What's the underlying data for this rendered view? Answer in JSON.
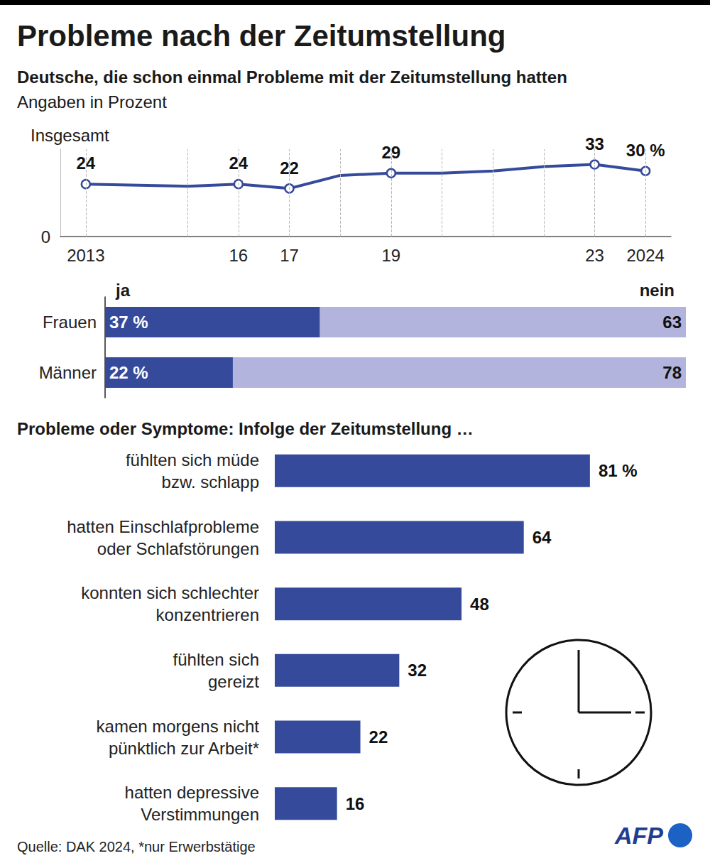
{
  "title": "Probleme nach der Zeitumstellung",
  "subtitle": "Deutsche, die schon einmal Probleme mit der Zeitumstellung hatten",
  "unit_note": "Angaben in Prozent",
  "source": "Quelle: DAK 2024, *nur Erwerbstätige",
  "logo": "AFP",
  "chart_data": [
    {
      "type": "line",
      "title": "Insgesamt",
      "x": [
        2013,
        2015,
        2016,
        2017,
        2018,
        2019,
        2020,
        2021,
        2022,
        2023,
        2024
      ],
      "values": [
        24,
        23,
        24,
        22,
        28,
        29,
        29,
        30,
        32,
        33,
        30
      ],
      "value_labels": [
        "24",
        null,
        "24",
        "22",
        null,
        "29",
        null,
        null,
        null,
        "33",
        "30 %"
      ],
      "color": "#354a9b",
      "marker": "circle",
      "xlim": [
        2012.5,
        2024.5
      ],
      "xticks": [
        2013,
        {
          "value": 2016,
          "label": "16"
        },
        {
          "value": 2017,
          "label": "17"
        },
        {
          "value": 2019,
          "label": "19"
        },
        {
          "value": 2023,
          "label": "23"
        },
        2024
      ],
      "ylim": [
        0,
        40
      ],
      "yticks": [
        0
      ],
      "grid": true,
      "data_labels": true
    },
    {
      "type": "bar",
      "orientation": "horizontal",
      "stacked": true,
      "categories": [
        "Frauen",
        "Männer"
      ],
      "series": [
        {
          "name": "ja",
          "color": "#354a9b",
          "values": [
            37,
            22
          ],
          "value_labels": [
            "37 %",
            "22 %"
          ]
        },
        {
          "name": "nein",
          "color": "#b3b4dd",
          "values": [
            63,
            78
          ]
        }
      ],
      "xlim": [
        0,
        100
      ],
      "tick_labels": "y",
      "data_labels": true
    },
    {
      "type": "bar",
      "orientation": "horizontal",
      "title": "Probleme oder Symptome: Infolge der Zeitumstellung …",
      "categories": [
        "fühlten sich müde\nbzw. schlapp",
        "hatten Einschlafprobleme\noder Schlafstörungen",
        "konnten sich schlechter\nkonzentrieren",
        "fühlten sich\ngereizt",
        "kamen morgens nicht\npünktlich zur Arbeit*",
        "hatten depressive\nVerstimmungen"
      ],
      "values": [
        81,
        64,
        48,
        32,
        22,
        16
      ],
      "value_labels": [
        "81 %",
        "64",
        "48",
        "32",
        "22",
        "16"
      ],
      "color": "#354a9b",
      "xlim": [
        0,
        100
      ],
      "tick_labels": "y",
      "data_labels": true
    }
  ]
}
